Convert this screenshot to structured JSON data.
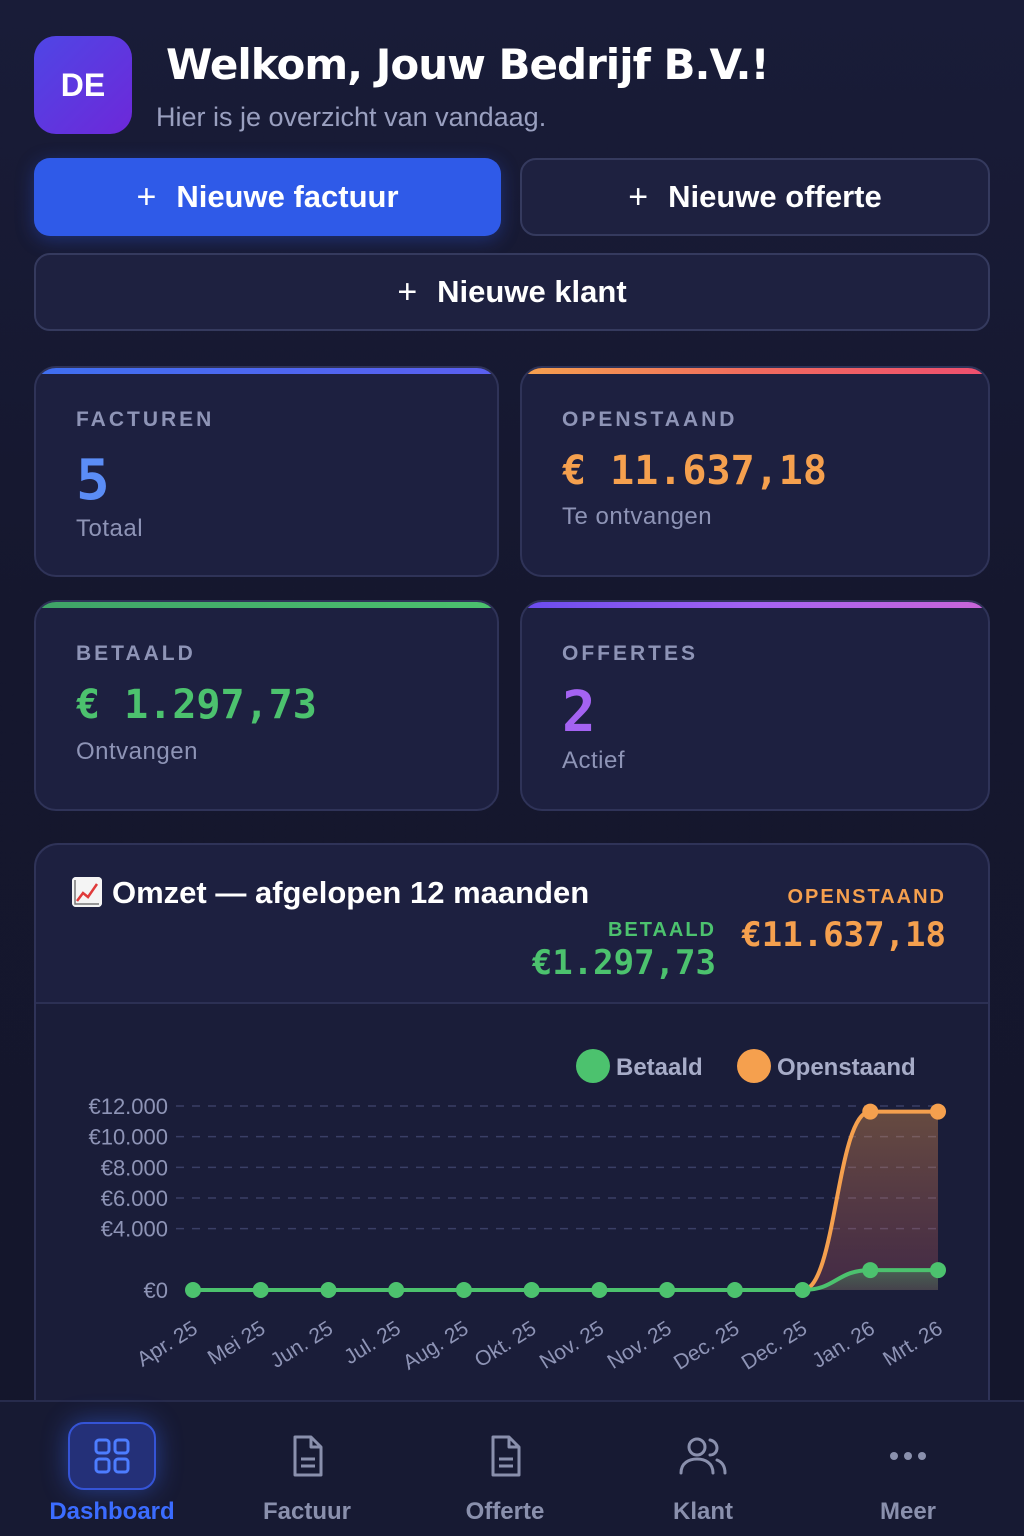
{
  "header": {
    "avatar_initials": "DE",
    "welcome": "Welkom, Jouw Bedrijf B.V.!",
    "subtitle": "Hier is je overzicht van vandaag."
  },
  "actions": {
    "new_invoice": "Nieuwe factuur",
    "new_quote": "Nieuwe offerte",
    "new_client": "Nieuwe klant",
    "plus": "+"
  },
  "stats": {
    "invoices": {
      "label": "FACTUREN",
      "value": "5",
      "caption": "Totaal",
      "color": "#5b8df6"
    },
    "outstanding": {
      "label": "OPENSTAAND",
      "value": "€ 11.637,18",
      "caption": "Te ontvangen",
      "color": "#f5a04e"
    },
    "paid": {
      "label": "BETAALD",
      "value": "€ 1.297,73",
      "caption": "Ontvangen",
      "color": "#4cc26e"
    },
    "quotes": {
      "label": "OFFERTES",
      "value": "2",
      "caption": "Actief",
      "color": "#a463f2"
    }
  },
  "revenue": {
    "title": "Omzet — afgelopen 12 maanden",
    "paid_label": "BETAALD",
    "paid_total": "€1.297,73",
    "outstanding_label": "OPENSTAAND",
    "outstanding_total": "€11.637,18"
  },
  "chart_data": {
    "type": "line",
    "x": [
      "Apr. 25",
      "Mei 25",
      "Jun. 25",
      "Jul. 25",
      "Aug. 25",
      "Okt. 25",
      "Nov. 25",
      "Nov. 25",
      "Dec. 25",
      "Dec. 25",
      "Jan. 26",
      "Mrt. 26"
    ],
    "series": [
      {
        "name": "Betaald",
        "color": "#4cc26e",
        "values": [
          0,
          0,
          0,
          0,
          0,
          0,
          0,
          0,
          0,
          0,
          1300,
          1300
        ]
      },
      {
        "name": "Openstaand",
        "color": "#f5a04e",
        "values": [
          null,
          null,
          null,
          null,
          null,
          null,
          null,
          null,
          null,
          0,
          11637,
          11637
        ]
      }
    ],
    "yticks": [
      "€12.000",
      "€10.000",
      "€8.000",
      "€6.000",
      "€4.000",
      "€0"
    ],
    "ytick_values": [
      12000,
      10000,
      8000,
      6000,
      4000,
      0
    ],
    "legend": "top-right",
    "grid": true
  },
  "nav": {
    "dashboard": "Dashboard",
    "invoice": "Factuur",
    "quote": "Offerte",
    "client": "Klant",
    "more": "Meer"
  }
}
